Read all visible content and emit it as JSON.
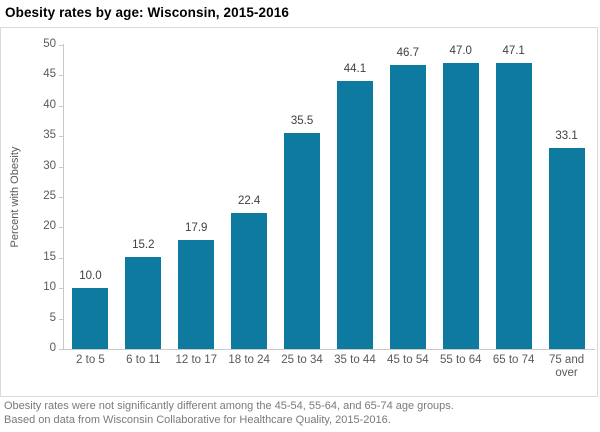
{
  "title": "Obesity rates by age: Wisconsin, 2015-2016",
  "colors": {
    "bar": "#0e7a9f",
    "axis": "#c9c9c9",
    "border": "#d9d9d9",
    "title_text": "#000000",
    "tick_label": "#595959",
    "data_label": "#404040",
    "footer_text": "#7a7a7a"
  },
  "chart_data": {
    "type": "bar",
    "title": "Obesity rates by age: Wisconsin, 2015-2016",
    "categories": [
      "2 to 5",
      "6 to 11",
      "12 to 17",
      "18 to 24",
      "25 to 34",
      "35 to 44",
      "45 to 54",
      "55 to 64",
      "65 to 74",
      "75 and over"
    ],
    "values": [
      10.0,
      15.2,
      17.9,
      22.4,
      35.5,
      44.1,
      46.7,
      47.0,
      47.1,
      33.1
    ],
    "data_labels": [
      "10.0",
      "15.2",
      "17.9",
      "22.4",
      "35.5",
      "44.1",
      "46.7",
      "47.0",
      "47.1",
      "33.1"
    ],
    "xlabel": "",
    "ylabel": "Percent with Obesity",
    "ylim": [
      0,
      50
    ],
    "yticks": [
      0,
      5,
      10,
      15,
      20,
      25,
      30,
      35,
      40,
      45,
      50
    ],
    "grid": false,
    "legend": "none",
    "data_labels_position": "above-bar"
  },
  "footer": {
    "line1": "Obesity rates were not significantly different among the 45-54, 55-64, and 65-74 age groups.",
    "line2": "Based on data from Wisconsin Collaborative for Healthcare Quality, 2015-2016."
  }
}
